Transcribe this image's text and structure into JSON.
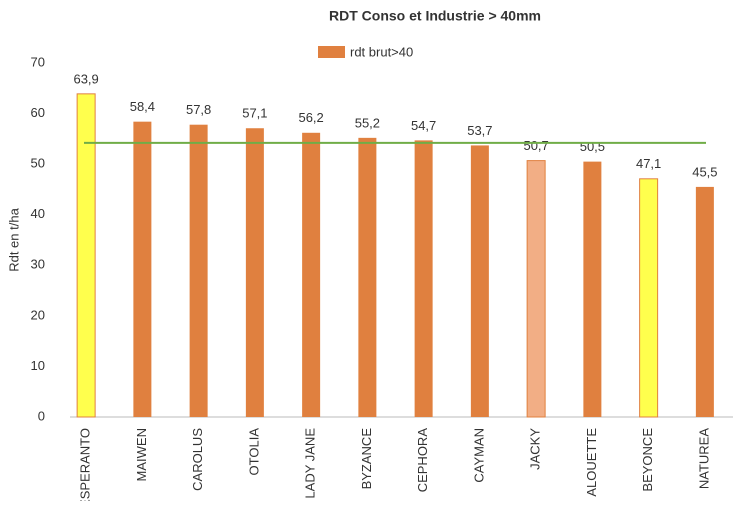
{
  "chart_data": {
    "type": "bar",
    "title": "RDT Conso et Industrie > 40mm",
    "y_label": "Rdt en t/ha",
    "categories": [
      "ESPERANTO",
      "MAIWEN",
      "CAROLUS",
      "OTOLIA",
      "LADY JANE",
      "BYZANCE",
      "CEPHORA",
      "CAYMAN",
      "JACKY",
      "ALOUETTE",
      "BEYONCE",
      "NATUREA"
    ],
    "series": [
      {
        "name": "rdt brut>40",
        "color": "#e0803f",
        "values": [
          63.9,
          58.4,
          57.8,
          57.1,
          56.2,
          55.2,
          54.7,
          53.7,
          50.7,
          50.5,
          47.1,
          45.5
        ],
        "value_labels": [
          "63,9",
          "58,4",
          "57,8",
          "57,1",
          "56,2",
          "55,2",
          "54,7",
          "53,7",
          "50,7",
          "50,5",
          "47,1",
          "45,5"
        ],
        "colors": [
          "#ffff4d",
          "#e0803f",
          "#e0803f",
          "#e0803f",
          "#e0803f",
          "#e0803f",
          "#e0803f",
          "#e0803f",
          "#f2ae85",
          "#e0803f",
          "#ffff4d",
          "#e0803f"
        ]
      }
    ],
    "reference_line": {
      "value": 54.2,
      "color": "#70ad47"
    },
    "ylim": [
      0,
      70
    ],
    "yticks": [
      0,
      10,
      20,
      30,
      40,
      50,
      60,
      70
    ],
    "grid": false,
    "legend": "top"
  }
}
